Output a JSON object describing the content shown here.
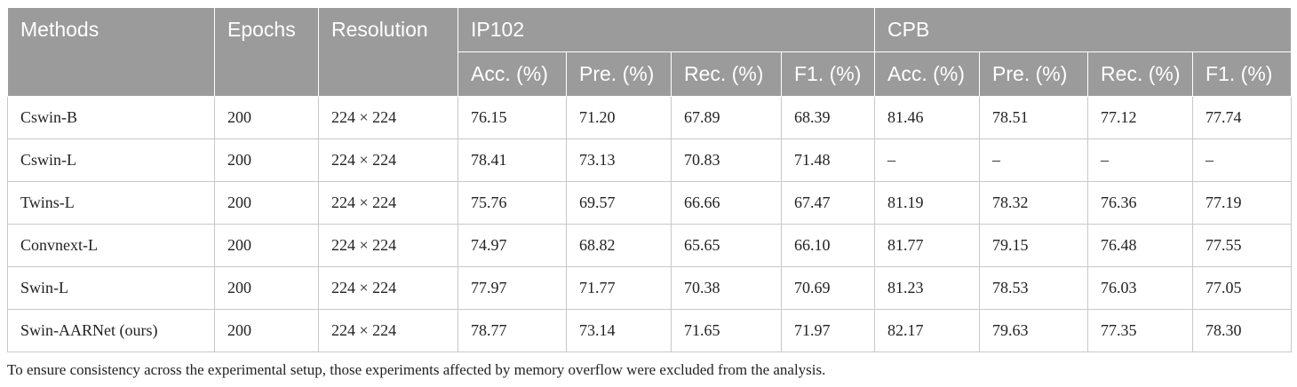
{
  "table": {
    "headers": {
      "methods": "Methods",
      "epochs": "Epochs",
      "resolution": "Resolution",
      "group_ip102": "IP102",
      "group_cpb": "CPB",
      "metrics": [
        "Acc. (%)",
        "Pre. (%)",
        "Rec. (%)",
        "F1. (%)",
        "Acc. (%)",
        "Pre. (%)",
        "Rec. (%)",
        "F1. (%)"
      ]
    },
    "rows": [
      {
        "method": "Cswin-B",
        "epochs": "200",
        "resolution": "224 × 224",
        "values": [
          "76.15",
          "71.20",
          "67.89",
          "68.39",
          "81.46",
          "78.51",
          "77.12",
          "77.74"
        ]
      },
      {
        "method": "Cswin-L",
        "epochs": "200",
        "resolution": "224 × 224",
        "values": [
          "78.41",
          "73.13",
          "70.83",
          "71.48",
          "–",
          "–",
          "–",
          "–"
        ]
      },
      {
        "method": "Twins-L",
        "epochs": "200",
        "resolution": "224 × 224",
        "values": [
          "75.76",
          "69.57",
          "66.66",
          "67.47",
          "81.19",
          "78.32",
          "76.36",
          "77.19"
        ]
      },
      {
        "method": "Convnext-L",
        "epochs": "200",
        "resolution": "224 × 224",
        "values": [
          "74.97",
          "68.82",
          "65.65",
          "66.10",
          "81.77",
          "79.15",
          "76.48",
          "77.55"
        ]
      },
      {
        "method": "Swin-L",
        "epochs": "200",
        "resolution": "224 × 224",
        "values": [
          "77.97",
          "71.77",
          "70.38",
          "70.69",
          "81.23",
          "78.53",
          "76.03",
          "77.05"
        ]
      },
      {
        "method": "Swin-AARNet (ours)",
        "epochs": "200",
        "resolution": "224 × 224",
        "values": [
          "78.77",
          "73.14",
          "71.65",
          "71.97",
          "82.17",
          "79.63",
          "77.35",
          "78.30"
        ]
      }
    ]
  },
  "footnote": "To ensure consistency across the experimental setup, those experiments affected by memory overflow were excluded from the analysis.",
  "colors": {
    "header_bg": "#9b9b9b",
    "header_text": "#ffffff",
    "grid": "#c8c8c8",
    "body_text": "#222222"
  }
}
